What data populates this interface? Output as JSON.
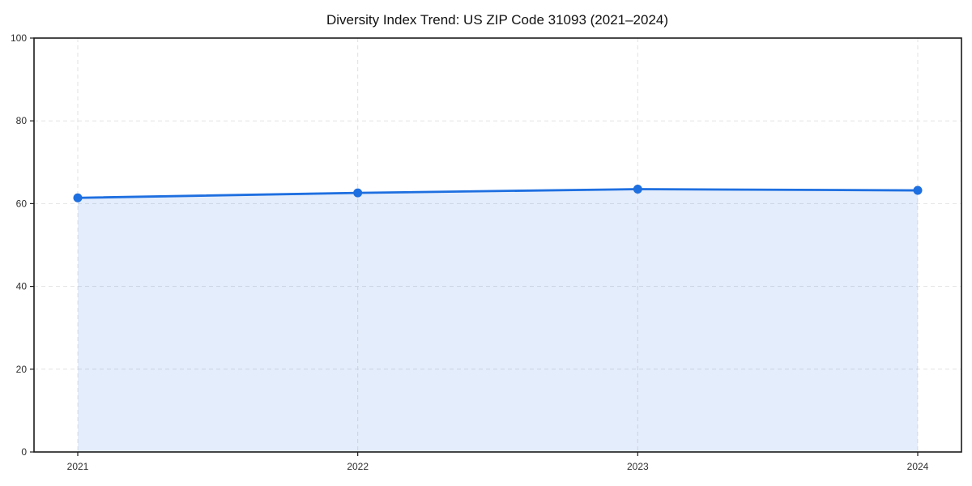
{
  "chart_data": {
    "type": "area",
    "title": "Diversity Index Trend: US ZIP Code 31093 (2021–2024)",
    "xlabel": "",
    "ylabel": "",
    "x": [
      2021,
      2022,
      2023,
      2024
    ],
    "xticks": [
      "2021",
      "2022",
      "2023",
      "2024"
    ],
    "yticks": [
      0,
      20,
      40,
      60,
      80,
      100
    ],
    "ylim": [
      0,
      100
    ],
    "grid": true,
    "grid_style": "dashed",
    "legend": false,
    "marker": "circle",
    "series": [
      {
        "name": "Diversity Index",
        "values": [
          61.4,
          62.6,
          63.5,
          63.2
        ]
      }
    ],
    "colors": {
      "line": "#1e6fe0",
      "marker": "#1e6fe0",
      "area": "#1e6fe0",
      "area_opacity": 0.12,
      "grid": "#e2e2e2",
      "axis": "#1a1a1a",
      "tick_label": "#2e2e2e",
      "title": "#111111",
      "background": "#ffffff"
    }
  }
}
